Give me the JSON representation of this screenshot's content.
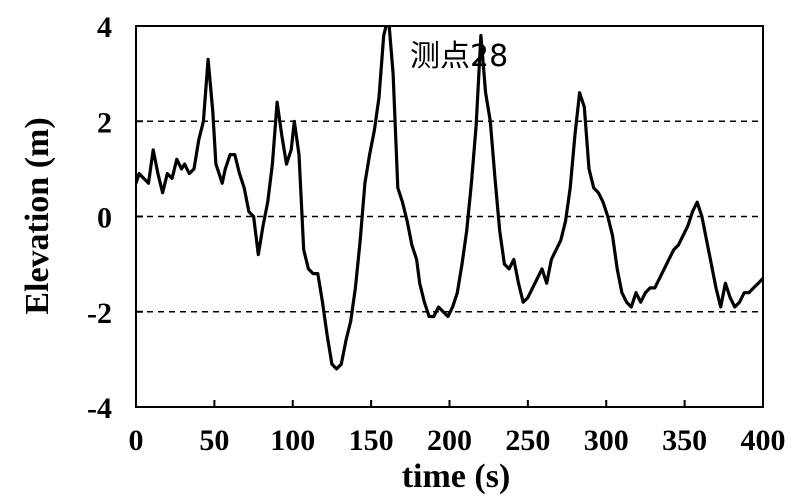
{
  "chart_data": {
    "type": "line",
    "title": "",
    "annotation": "测点28",
    "xlabel": "time (s)",
    "ylabel": "Elevation (m)",
    "xlim": [
      0,
      400
    ],
    "ylim": [
      -4,
      4
    ],
    "xticks": [
      0,
      50,
      100,
      150,
      200,
      250,
      300,
      350,
      400
    ],
    "yticks": [
      -4,
      -2,
      0,
      2,
      4
    ],
    "grid": "dashed horizontal at y = -2, 0, 2",
    "legend": "none",
    "line_color": "#000000",
    "series": [
      {
        "x": [
          0,
          2,
          5,
          8,
          11,
          14,
          17,
          20,
          23,
          26,
          29,
          31,
          34,
          37,
          40,
          43,
          46,
          49,
          51,
          53,
          55,
          57,
          60,
          63,
          66,
          69,
          72,
          75,
          78,
          81,
          84,
          87,
          90,
          93,
          96,
          99,
          101,
          104,
          107,
          110,
          113,
          116,
          119,
          122,
          125,
          128,
          131,
          134,
          137,
          140,
          143,
          146,
          149,
          152,
          155,
          158,
          161,
          164,
          167,
          170,
          173,
          176,
          179,
          181,
          184,
          187,
          190,
          193,
          196,
          199,
          202,
          205,
          208,
          211,
          214,
          217,
          220,
          223,
          226,
          229,
          232,
          235,
          238,
          241,
          244,
          247,
          250,
          253,
          256,
          259,
          262,
          265,
          268,
          271,
          274,
          277,
          280,
          283,
          286,
          289,
          292,
          295,
          298,
          301,
          304,
          307,
          310,
          313,
          316,
          319,
          322,
          325,
          328,
          331,
          334,
          337,
          340,
          343,
          346,
          349,
          352,
          355,
          358,
          361,
          364,
          367,
          370,
          373,
          376,
          379,
          382,
          385,
          388,
          391,
          394,
          397,
          400
        ],
        "y": [
          0.7,
          0.9,
          0.8,
          0.7,
          1.4,
          0.9,
          0.5,
          0.9,
          0.8,
          1.2,
          1.0,
          1.1,
          0.9,
          1.0,
          1.6,
          2.0,
          3.3,
          2.2,
          1.1,
          0.9,
          0.7,
          1.0,
          1.3,
          1.3,
          0.9,
          0.6,
          0.1,
          0.0,
          -0.8,
          -0.2,
          0.3,
          1.1,
          2.4,
          1.7,
          1.1,
          1.4,
          2.0,
          1.3,
          -0.7,
          -1.1,
          -1.2,
          -1.2,
          -1.8,
          -2.5,
          -3.1,
          -3.2,
          -3.1,
          -2.6,
          -2.2,
          -1.5,
          -0.5,
          0.7,
          1.3,
          1.8,
          2.5,
          3.8,
          4.2,
          3.0,
          0.6,
          0.3,
          -0.1,
          -0.6,
          -0.9,
          -1.4,
          -1.8,
          -2.1,
          -2.1,
          -1.9,
          -2.0,
          -2.1,
          -1.9,
          -1.6,
          -1.0,
          -0.3,
          0.7,
          1.9,
          3.8,
          2.6,
          2.0,
          0.8,
          -0.3,
          -1.0,
          -1.1,
          -0.9,
          -1.4,
          -1.8,
          -1.7,
          -1.5,
          -1.3,
          -1.1,
          -1.4,
          -0.9,
          -0.7,
          -0.5,
          -0.1,
          0.6,
          1.7,
          2.6,
          2.3,
          1.0,
          0.6,
          0.5,
          0.3,
          0.0,
          -0.4,
          -1.1,
          -1.6,
          -1.8,
          -1.9,
          -1.6,
          -1.8,
          -1.6,
          -1.5,
          -1.5,
          -1.3,
          -1.1,
          -0.9,
          -0.7,
          -0.6,
          -0.4,
          -0.2,
          0.1,
          0.3,
          0.0,
          -0.5,
          -1.0,
          -1.5,
          -1.9,
          -1.4,
          -1.7,
          -1.9,
          -1.8,
          -1.6,
          -1.6,
          -1.5,
          -1.4,
          -1.3
        ]
      }
    ]
  }
}
